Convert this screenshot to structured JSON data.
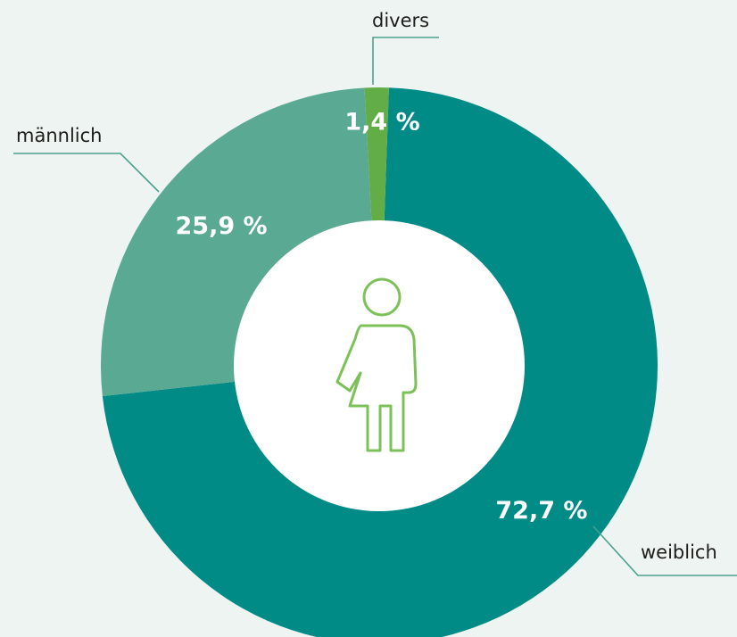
{
  "chart_data": {
    "type": "pie",
    "donut": true,
    "categories": [
      "weiblich",
      "männlich",
      "divers"
    ],
    "values": [
      72.7,
      25.9,
      1.4
    ],
    "value_labels": [
      "72,7 %",
      "25,9 %",
      "1,4 %"
    ],
    "colors": [
      "#008b87",
      "#5aaa93",
      "#62ad45"
    ]
  }
}
